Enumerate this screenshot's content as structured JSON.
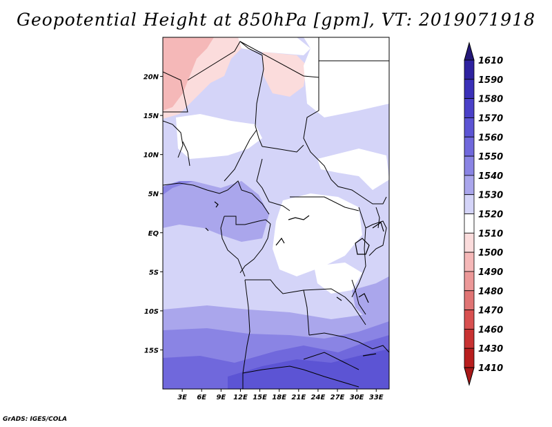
{
  "title": "Geopotential Height at 850hPa [gpm], VT: 2019071918",
  "credit": "GrADS: IGES/COLA",
  "map": {
    "lon_range": [
      0,
      35
    ],
    "lat_range": [
      -20,
      25
    ],
    "lat_ticks": [
      {
        "lat": 20,
        "label": "20N"
      },
      {
        "lat": 15,
        "label": "15N"
      },
      {
        "lat": 10,
        "label": "10N"
      },
      {
        "lat": 5,
        "label": "5N"
      },
      {
        "lat": 0,
        "label": "EQ"
      },
      {
        "lat": -5,
        "label": "5S"
      },
      {
        "lat": -10,
        "label": "10S"
      },
      {
        "lat": -15,
        "label": "15S"
      }
    ],
    "lon_ticks": [
      {
        "lon": 3,
        "label": "3E"
      },
      {
        "lon": 6,
        "label": "6E"
      },
      {
        "lon": 9,
        "label": "9E"
      },
      {
        "lon": 12,
        "label": "12E"
      },
      {
        "lon": 15,
        "label": "15E"
      },
      {
        "lon": 18,
        "label": "18E"
      },
      {
        "lon": 21,
        "label": "21E"
      },
      {
        "lon": 24,
        "label": "24E"
      },
      {
        "lon": 27,
        "label": "27E"
      },
      {
        "lon": 30,
        "label": "30E"
      },
      {
        "lon": 33,
        "label": "33E"
      }
    ]
  },
  "colorbar": {
    "levels": [
      {
        "label": "1610",
        "color": "#241878"
      },
      {
        "label": "1590",
        "color": "#2e22a0"
      },
      {
        "label": "1580",
        "color": "#3a30b8"
      },
      {
        "label": "1570",
        "color": "#4a40c8"
      },
      {
        "label": "1560",
        "color": "#5c54d4"
      },
      {
        "label": "1550",
        "color": "#7068dc"
      },
      {
        "label": "1540",
        "color": "#8a84e4"
      },
      {
        "label": "1530",
        "color": "#aaa6ec"
      },
      {
        "label": "1520",
        "color": "#d4d4f8"
      },
      {
        "label": "1510",
        "color": "#ffffff"
      },
      {
        "label": "1500",
        "color": "#fbdcdc"
      },
      {
        "label": "1490",
        "color": "#f5b8b8"
      },
      {
        "label": "1480",
        "color": "#ec9898"
      },
      {
        "label": "1470",
        "color": "#e07474"
      },
      {
        "label": "1460",
        "color": "#d85050"
      },
      {
        "label": "1430",
        "color": "#c83232"
      },
      {
        "label": "1410",
        "color": "#b81e1e"
      }
    ],
    "top_color": "#241878",
    "bottom_color": "#a81818"
  }
}
